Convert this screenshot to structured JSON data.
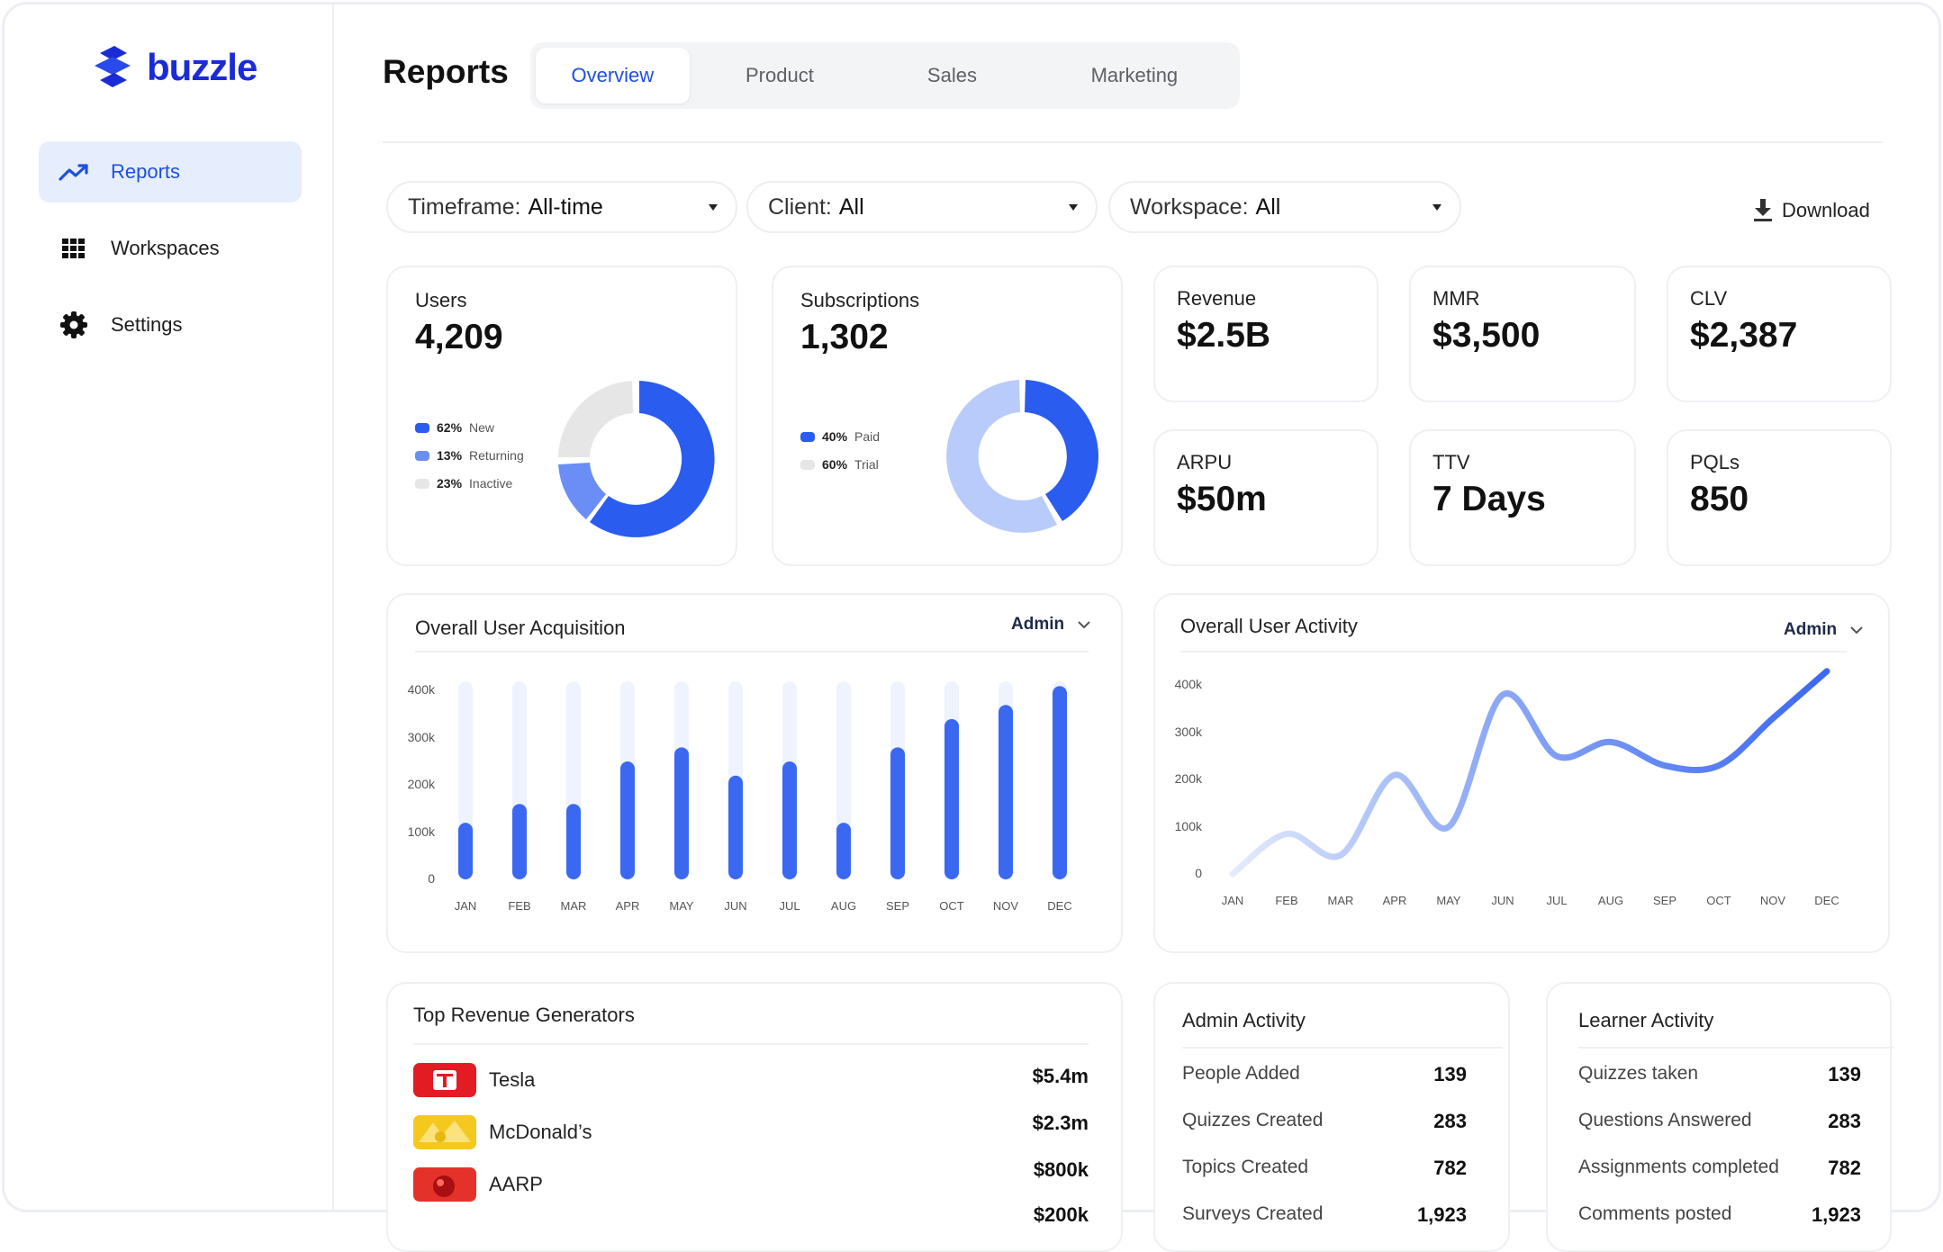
{
  "brand": {
    "name": "buzzle",
    "accent": "#1f4fe0"
  },
  "sidebar": {
    "items": [
      {
        "label": "Reports",
        "icon": "trend-up-icon",
        "active": true
      },
      {
        "label": "Workspaces",
        "icon": "grid-icon",
        "active": false
      },
      {
        "label": "Settings",
        "icon": "gear-icon",
        "active": false
      }
    ]
  },
  "header": {
    "title": "Reports",
    "tabs": [
      {
        "label": "Overview",
        "active": true
      },
      {
        "label": "Product",
        "active": false
      },
      {
        "label": "Sales",
        "active": false
      },
      {
        "label": "Marketing",
        "active": false
      }
    ]
  },
  "filters": [
    {
      "label": "Timeframe:",
      "value": "All-time"
    },
    {
      "label": "Client:",
      "value": "All"
    },
    {
      "label": "Workspace:",
      "value": "All"
    }
  ],
  "download_label": "Download",
  "users": {
    "label": "Users",
    "value": "4,209",
    "legend": [
      {
        "pct": "62%",
        "name": "New",
        "color": "#2a5cf0"
      },
      {
        "pct": "13%",
        "name": "Returning",
        "color": "#6a8ef5"
      },
      {
        "pct": "23%",
        "name": "Inactive",
        "color": "#e6e6e6"
      }
    ]
  },
  "subscriptions": {
    "label": "Subscriptions",
    "value": "1,302",
    "legend": [
      {
        "pct": "40%",
        "name": "Paid",
        "color": "#2a5cf0"
      },
      {
        "pct": "60%",
        "name": "Trial",
        "color": "#b9cbfb"
      }
    ]
  },
  "metrics": [
    {
      "label": "Revenue",
      "value": "$2.5B"
    },
    {
      "label": "MMR",
      "value": "$3,500"
    },
    {
      "label": "CLV",
      "value": "$2,387"
    },
    {
      "label": "ARPU",
      "value": "$50m"
    },
    {
      "label": "TTV",
      "value": "7 Days"
    },
    {
      "label": "PQLs",
      "value": "850"
    }
  ],
  "acquisition": {
    "title": "Overall User Acquisition",
    "dropdown": "Admin"
  },
  "activity": {
    "title": "Overall User Activity",
    "dropdown": "Admin"
  },
  "chart_data": [
    {
      "type": "bar",
      "title": "Overall User Acquisition",
      "categories": [
        "JAN",
        "FEB",
        "MAR",
        "APR",
        "MAY",
        "JUN",
        "JUL",
        "AUG",
        "SEP",
        "OCT",
        "NOV",
        "DEC"
      ],
      "values": [
        120000,
        160000,
        160000,
        250000,
        280000,
        220000,
        250000,
        120000,
        280000,
        340000,
        370000,
        410000
      ],
      "yticks": [
        "400k",
        "300k",
        "200k",
        "100k",
        "0"
      ],
      "ylim": [
        0,
        420000
      ],
      "color": "#3b68f1",
      "track_color": "#eef3fe"
    },
    {
      "type": "line",
      "title": "Overall User Activity",
      "x": [
        "JAN",
        "FEB",
        "MAR",
        "APR",
        "MAY",
        "JUN",
        "JUL",
        "AUG",
        "SEP",
        "OCT",
        "NOV",
        "DEC"
      ],
      "values": [
        0,
        85000,
        40000,
        210000,
        100000,
        380000,
        250000,
        280000,
        230000,
        230000,
        330000,
        430000
      ],
      "yticks": [
        "400k",
        "300k",
        "200k",
        "100k",
        "0"
      ],
      "ylim": [
        0,
        420000
      ],
      "color": "#3b68f1"
    }
  ],
  "top_revenue": {
    "title": "Top Revenue Generators",
    "rows": [
      {
        "name": "Tesla",
        "value": "$5.4m",
        "logo": "tesla-logo"
      },
      {
        "name": "McDonald’s",
        "value": "$2.3m",
        "logo": "mcdonalds-logo"
      },
      {
        "name": "AARP",
        "value": "$800k",
        "logo": "aarp-logo"
      },
      {
        "name": "",
        "value": "$200k",
        "logo": ""
      }
    ]
  },
  "admin_activity": {
    "title": "Admin Activity",
    "rows": [
      {
        "label": "People Added",
        "value": "139"
      },
      {
        "label": "Quizzes Created",
        "value": "283"
      },
      {
        "label": "Topics Created",
        "value": "782"
      },
      {
        "label": "Surveys Created",
        "value": "1,923"
      }
    ]
  },
  "learner_activity": {
    "title": "Learner Activity",
    "rows": [
      {
        "label": "Quizzes taken",
        "value": "139"
      },
      {
        "label": "Questions Answered",
        "value": "283"
      },
      {
        "label": "Assignments completed",
        "value": "782"
      },
      {
        "label": "Comments posted",
        "value": "1,923"
      }
    ]
  }
}
